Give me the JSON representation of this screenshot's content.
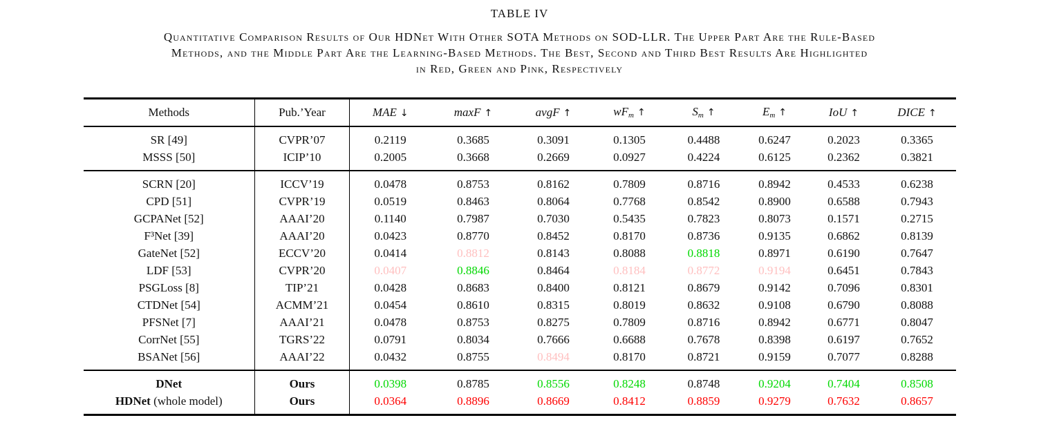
{
  "title": "TABLE IV",
  "caption_lines": [
    "Quantitative Comparison Results of Our HDNet With Other SOTA Methods on SOD-LLR. The Upper Part Are the Rule-Based",
    "Methods, and the Middle Part Are the Learning-Based Methods. The Best, Second and Third Best Results Are Highlighted",
    "in Red, Green and Pink, Respectively"
  ],
  "highlight_colors": {
    "red": "#fe0000",
    "green": "#00d800",
    "pink": "#ffbfbf"
  },
  "table": {
    "header": {
      "methods_label": "Methods",
      "pub_label": "Pub.’Year",
      "metrics": [
        {
          "name": "MAE",
          "sub": "",
          "arrow": "↓"
        },
        {
          "name": "maxF",
          "sub": "",
          "arrow": "↑"
        },
        {
          "name": "avgF",
          "sub": "",
          "arrow": "↑"
        },
        {
          "name": "wF",
          "sub": "m",
          "arrow": "↑"
        },
        {
          "name": "S",
          "sub": "m",
          "arrow": "↑"
        },
        {
          "name": "E",
          "sub": "m",
          "arrow": "↑"
        },
        {
          "name": "IoU",
          "sub": "",
          "arrow": "↑"
        },
        {
          "name": "DICE",
          "sub": "",
          "arrow": "↑"
        }
      ]
    },
    "groups": [
      {
        "name": "rule-based",
        "rows": [
          {
            "method": "SR [49]",
            "method_suffix": "",
            "pub": "CVPR’07",
            "bold": false,
            "values": [
              [
                "0.2119",
                ""
              ],
              [
                "0.3685",
                ""
              ],
              [
                "0.3091",
                ""
              ],
              [
                "0.1305",
                ""
              ],
              [
                "0.4488",
                ""
              ],
              [
                "0.6247",
                ""
              ],
              [
                "0.2023",
                ""
              ],
              [
                "0.3365",
                ""
              ]
            ]
          },
          {
            "method": "MSSS [50]",
            "method_suffix": "",
            "pub": "ICIP’10",
            "bold": false,
            "values": [
              [
                "0.2005",
                ""
              ],
              [
                "0.3668",
                ""
              ],
              [
                "0.2669",
                ""
              ],
              [
                "0.0927",
                ""
              ],
              [
                "0.4224",
                ""
              ],
              [
                "0.6125",
                ""
              ],
              [
                "0.2362",
                ""
              ],
              [
                "0.3821",
                ""
              ]
            ]
          }
        ]
      },
      {
        "name": "learning-based",
        "rows": [
          {
            "method": "SCRN [20]",
            "method_suffix": "",
            "pub": "ICCV’19",
            "bold": false,
            "values": [
              [
                "0.0478",
                ""
              ],
              [
                "0.8753",
                ""
              ],
              [
                "0.8162",
                ""
              ],
              [
                "0.7809",
                ""
              ],
              [
                "0.8716",
                ""
              ],
              [
                "0.8942",
                ""
              ],
              [
                "0.4533",
                ""
              ],
              [
                "0.6238",
                ""
              ]
            ]
          },
          {
            "method": "CPD [51]",
            "method_suffix": "",
            "pub": "CVPR’19",
            "bold": false,
            "values": [
              [
                "0.0519",
                ""
              ],
              [
                "0.8463",
                ""
              ],
              [
                "0.8064",
                ""
              ],
              [
                "0.7768",
                ""
              ],
              [
                "0.8542",
                ""
              ],
              [
                "0.8900",
                ""
              ],
              [
                "0.6588",
                ""
              ],
              [
                "0.7943",
                ""
              ]
            ]
          },
          {
            "method": "GCPANet [52]",
            "method_suffix": "",
            "pub": "AAAI’20",
            "bold": false,
            "values": [
              [
                "0.1140",
                ""
              ],
              [
                "0.7987",
                ""
              ],
              [
                "0.7030",
                ""
              ],
              [
                "0.5435",
                ""
              ],
              [
                "0.7823",
                ""
              ],
              [
                "0.8073",
                ""
              ],
              [
                "0.1571",
                ""
              ],
              [
                "0.2715",
                ""
              ]
            ]
          },
          {
            "method": "F³Net [39]",
            "method_suffix": "",
            "pub": "AAAI’20",
            "bold": false,
            "values": [
              [
                "0.0423",
                ""
              ],
              [
                "0.8770",
                ""
              ],
              [
                "0.8452",
                ""
              ],
              [
                "0.8170",
                ""
              ],
              [
                "0.8736",
                ""
              ],
              [
                "0.9135",
                ""
              ],
              [
                "0.6862",
                ""
              ],
              [
                "0.8139",
                ""
              ]
            ]
          },
          {
            "method": "GateNet [52]",
            "method_suffix": "",
            "pub": "ECCV’20",
            "bold": false,
            "values": [
              [
                "0.0414",
                ""
              ],
              [
                "0.8812",
                "pink"
              ],
              [
                "0.8143",
                ""
              ],
              [
                "0.8088",
                ""
              ],
              [
                "0.8818",
                "green"
              ],
              [
                "0.8971",
                ""
              ],
              [
                "0.6190",
                ""
              ],
              [
                "0.7647",
                ""
              ]
            ]
          },
          {
            "method": "LDF [53]",
            "method_suffix": "",
            "pub": "CVPR’20",
            "bold": false,
            "values": [
              [
                "0.0407",
                "pink"
              ],
              [
                "0.8846",
                "green"
              ],
              [
                "0.8464",
                ""
              ],
              [
                "0.8184",
                "pink"
              ],
              [
                "0.8772",
                "pink"
              ],
              [
                "0.9194",
                "pink"
              ],
              [
                "0.6451",
                ""
              ],
              [
                "0.7843",
                ""
              ]
            ]
          },
          {
            "method": "PSGLoss [8]",
            "method_suffix": "",
            "pub": "TIP’21",
            "bold": false,
            "values": [
              [
                "0.0428",
                ""
              ],
              [
                "0.8683",
                ""
              ],
              [
                "0.8400",
                ""
              ],
              [
                "0.8121",
                ""
              ],
              [
                "0.8679",
                ""
              ],
              [
                "0.9142",
                ""
              ],
              [
                "0.7096",
                ""
              ],
              [
                "0.8301",
                ""
              ]
            ]
          },
          {
            "method": "CTDNet [54]",
            "method_suffix": "",
            "pub": "ACMM’21",
            "bold": false,
            "values": [
              [
                "0.0454",
                ""
              ],
              [
                "0.8610",
                ""
              ],
              [
                "0.8315",
                ""
              ],
              [
                "0.8019",
                ""
              ],
              [
                "0.8632",
                ""
              ],
              [
                "0.9108",
                ""
              ],
              [
                "0.6790",
                ""
              ],
              [
                "0.8088",
                ""
              ]
            ]
          },
          {
            "method": "PFSNet [7]",
            "method_suffix": "",
            "pub": "AAAI’21",
            "bold": false,
            "values": [
              [
                "0.0478",
                ""
              ],
              [
                "0.8753",
                ""
              ],
              [
                "0.8275",
                ""
              ],
              [
                "0.7809",
                ""
              ],
              [
                "0.8716",
                ""
              ],
              [
                "0.8942",
                ""
              ],
              [
                "0.6771",
                ""
              ],
              [
                "0.8047",
                ""
              ]
            ]
          },
          {
            "method": "CorrNet [55]",
            "method_suffix": "",
            "pub": "TGRS’22",
            "bold": false,
            "values": [
              [
                "0.0791",
                ""
              ],
              [
                "0.8034",
                ""
              ],
              [
                "0.7666",
                ""
              ],
              [
                "0.6688",
                ""
              ],
              [
                "0.7678",
                ""
              ],
              [
                "0.8398",
                ""
              ],
              [
                "0.6197",
                ""
              ],
              [
                "0.7652",
                ""
              ]
            ]
          },
          {
            "method": "BSANet [56]",
            "method_suffix": "",
            "pub": "AAAI’22",
            "bold": false,
            "values": [
              [
                "0.0432",
                ""
              ],
              [
                "0.8755",
                ""
              ],
              [
                "0.8494",
                "pink"
              ],
              [
                "0.8170",
                ""
              ],
              [
                "0.8721",
                ""
              ],
              [
                "0.9159",
                ""
              ],
              [
                "0.7077",
                ""
              ],
              [
                "0.8288",
                ""
              ]
            ]
          }
        ]
      },
      {
        "name": "ours",
        "rows": [
          {
            "method": "DNet",
            "method_suffix": "",
            "pub": "Ours",
            "bold": true,
            "values": [
              [
                "0.0398",
                "green"
              ],
              [
                "0.8785",
                ""
              ],
              [
                "0.8556",
                "green"
              ],
              [
                "0.8248",
                "green"
              ],
              [
                "0.8748",
                ""
              ],
              [
                "0.9204",
                "green"
              ],
              [
                "0.7404",
                "green"
              ],
              [
                "0.8508",
                "green"
              ]
            ]
          },
          {
            "method": "HDNet",
            "method_suffix": " (whole model)",
            "pub": "Ours",
            "bold": true,
            "values": [
              [
                "0.0364",
                "red"
              ],
              [
                "0.8896",
                "red"
              ],
              [
                "0.8669",
                "red"
              ],
              [
                "0.8412",
                "red"
              ],
              [
                "0.8859",
                "red"
              ],
              [
                "0.9279",
                "red"
              ],
              [
                "0.7632",
                "red"
              ],
              [
                "0.8657",
                "red"
              ]
            ]
          }
        ]
      }
    ]
  }
}
